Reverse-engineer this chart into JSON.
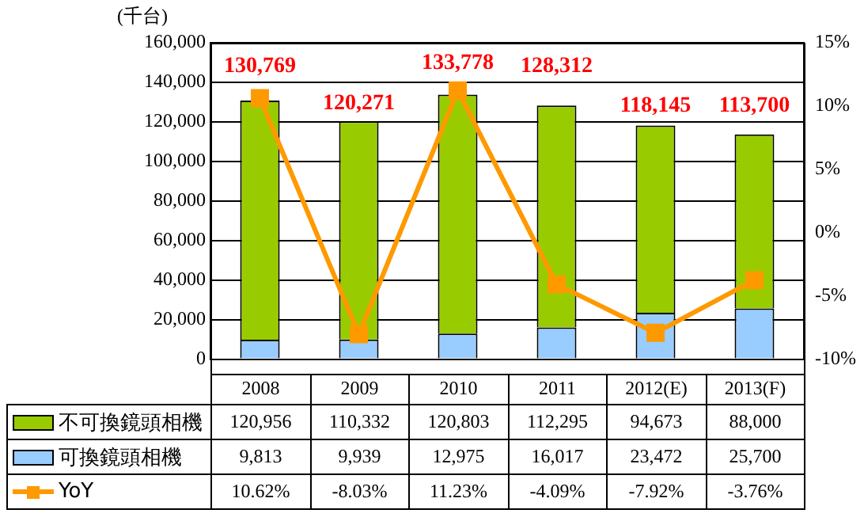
{
  "chart_data": {
    "type": "bar",
    "stacked": true,
    "ylabel": "(千台)",
    "categories": [
      "2008",
      "2009",
      "2010",
      "2011",
      "2012(E)",
      "2013(F)"
    ],
    "series": [
      {
        "name": "可換鏡頭相機",
        "color": "#99ccff",
        "values": [
          9813,
          9939,
          12975,
          16017,
          23472,
          25700
        ],
        "value_labels": [
          "9,813",
          "9,939",
          "12,975",
          "16,017",
          "23,472",
          "25,700"
        ]
      },
      {
        "name": "不可換鏡頭相機",
        "color": "#99cc00",
        "values": [
          120956,
          110332,
          120803,
          112295,
          94673,
          88000
        ],
        "value_labels": [
          "120,956",
          "110,332",
          "120,803",
          "112,295",
          "94,673",
          "88,000"
        ]
      },
      {
        "name": "YoY",
        "type": "line",
        "axis": "y2",
        "color": "#ff9900",
        "marker": "square",
        "values": [
          10.62,
          -8.03,
          11.23,
          -4.09,
          -7.92,
          -3.76
        ],
        "value_labels": [
          "10.62%",
          "-8.03%",
          "11.23%",
          "-4.09%",
          "-7.92%",
          "-3.76%"
        ]
      }
    ],
    "totals": [
      "130,769",
      "120,271",
      "133,778",
      "128,312",
      "118,145",
      "113,700"
    ],
    "ylim": [
      0,
      160000
    ],
    "yticks": [
      {
        "value": 0,
        "label": "0"
      },
      {
        "value": 20000,
        "label": "20,000"
      },
      {
        "value": 40000,
        "label": "40,000"
      },
      {
        "value": 60000,
        "label": "60,000"
      },
      {
        "value": 80000,
        "label": "80,000"
      },
      {
        "value": 100000,
        "label": "100,000"
      },
      {
        "value": 120000,
        "label": "120,000"
      },
      {
        "value": 140000,
        "label": "140,000"
      },
      {
        "value": 160000,
        "label": "160,000"
      }
    ],
    "y2lim": [
      -10,
      15
    ],
    "y2ticks": [
      {
        "value": -10,
        "label": "-10%"
      },
      {
        "value": -5,
        "label": "-5%"
      },
      {
        "value": 0,
        "label": "0%"
      },
      {
        "value": 5,
        "label": "5%"
      },
      {
        "value": 10,
        "label": "10%"
      },
      {
        "value": 15,
        "label": "15%"
      }
    ],
    "grid": "y",
    "legend": "bottom"
  }
}
